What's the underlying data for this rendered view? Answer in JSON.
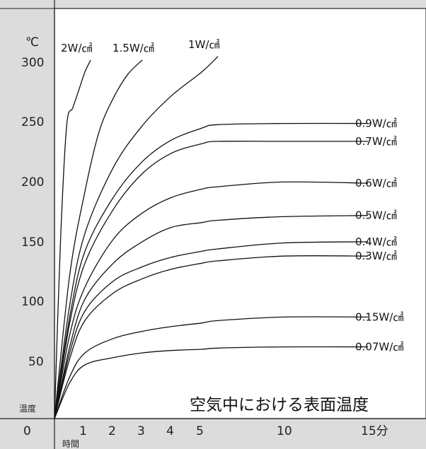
{
  "chart_data": {
    "type": "line",
    "title": "空気中における表面温度",
    "ylabel": "温度",
    "y_unit": "℃",
    "xlabel": "時間",
    "x_unit_label": "分",
    "ylim": [
      0,
      300
    ],
    "xlim": [
      0,
      15
    ],
    "y_ticks": [
      "300",
      "250",
      "200",
      "150",
      "100",
      "50",
      "0"
    ],
    "x_ticks": [
      "1",
      "2",
      "3",
      "4",
      "5",
      "10",
      "15分"
    ],
    "series": [
      {
        "name": "2W/㎠",
        "x": [
          0,
          0.2,
          0.4,
          0.6,
          0.8,
          1.0,
          1.2
        ],
        "y": [
          0,
          150,
          245,
          260,
          275,
          290,
          300
        ]
      },
      {
        "name": "1.5W/㎠",
        "x": [
          0,
          0.5,
          1.0,
          1.5,
          2.0,
          2.5,
          3.0
        ],
        "y": [
          0,
          120,
          190,
          240,
          268,
          288,
          300
        ]
      },
      {
        "name": "1W/㎠",
        "x": [
          0,
          0.5,
          1.0,
          2.0,
          3.0,
          4.0,
          5.0,
          6.0
        ],
        "y": [
          0,
          95,
          155,
          210,
          245,
          270,
          290,
          303
        ]
      },
      {
        "name": "0.9W/㎠",
        "x": [
          0,
          0.5,
          1.0,
          2.0,
          3.0,
          4.0,
          5.0,
          6.0,
          10.0,
          15.0
        ],
        "y": [
          0,
          85,
          140,
          185,
          215,
          233,
          243,
          246,
          247,
          247
        ]
      },
      {
        "name": "0.7W/㎠",
        "x": [
          0,
          0.5,
          1.0,
          2.0,
          3.0,
          4.0,
          5.0,
          6.0,
          10.0,
          15.0
        ],
        "y": [
          0,
          80,
          130,
          175,
          205,
          222,
          230,
          232,
          232,
          232
        ]
      },
      {
        "name": "0.6W/㎠",
        "x": [
          0,
          0.5,
          1.0,
          2.0,
          3.0,
          4.0,
          5.0,
          6.0,
          10.0,
          15.0
        ],
        "y": [
          0,
          70,
          110,
          150,
          172,
          185,
          192,
          194,
          198,
          197
        ]
      },
      {
        "name": "0.5W/㎠",
        "x": [
          0,
          0.5,
          1.0,
          2.0,
          3.0,
          4.0,
          5.0,
          6.0,
          10.0,
          15.0
        ],
        "y": [
          0,
          60,
          100,
          130,
          148,
          160,
          164,
          166,
          169,
          170
        ]
      },
      {
        "name": "0.4W/㎠",
        "x": [
          0,
          0.5,
          1.0,
          2.0,
          3.0,
          4.0,
          5.0,
          6.0,
          10.0,
          15.0
        ],
        "y": [
          0,
          55,
          90,
          115,
          127,
          135,
          140,
          142,
          147,
          148
        ]
      },
      {
        "name": "0.3W/㎠",
        "x": [
          0,
          0.5,
          1.0,
          2.0,
          3.0,
          4.0,
          5.0,
          6.0,
          10.0,
          15.0
        ],
        "y": [
          0,
          50,
          82,
          105,
          117,
          125,
          130,
          132,
          136,
          136
        ]
      },
      {
        "name": "0.15W/㎠",
        "x": [
          0,
          0.5,
          1.0,
          2.0,
          3.0,
          4.0,
          5.0,
          6.0,
          10.0,
          15.0
        ],
        "y": [
          0,
          35,
          55,
          67,
          73,
          77,
          80,
          82,
          85,
          85
        ]
      },
      {
        "name": "0.07W/㎠",
        "x": [
          0,
          0.5,
          1.0,
          2.0,
          3.0,
          4.0,
          5.0,
          6.0,
          10.0,
          15.0
        ],
        "y": [
          0,
          30,
          45,
          51,
          55,
          57,
          58,
          59,
          60,
          60
        ]
      }
    ]
  }
}
